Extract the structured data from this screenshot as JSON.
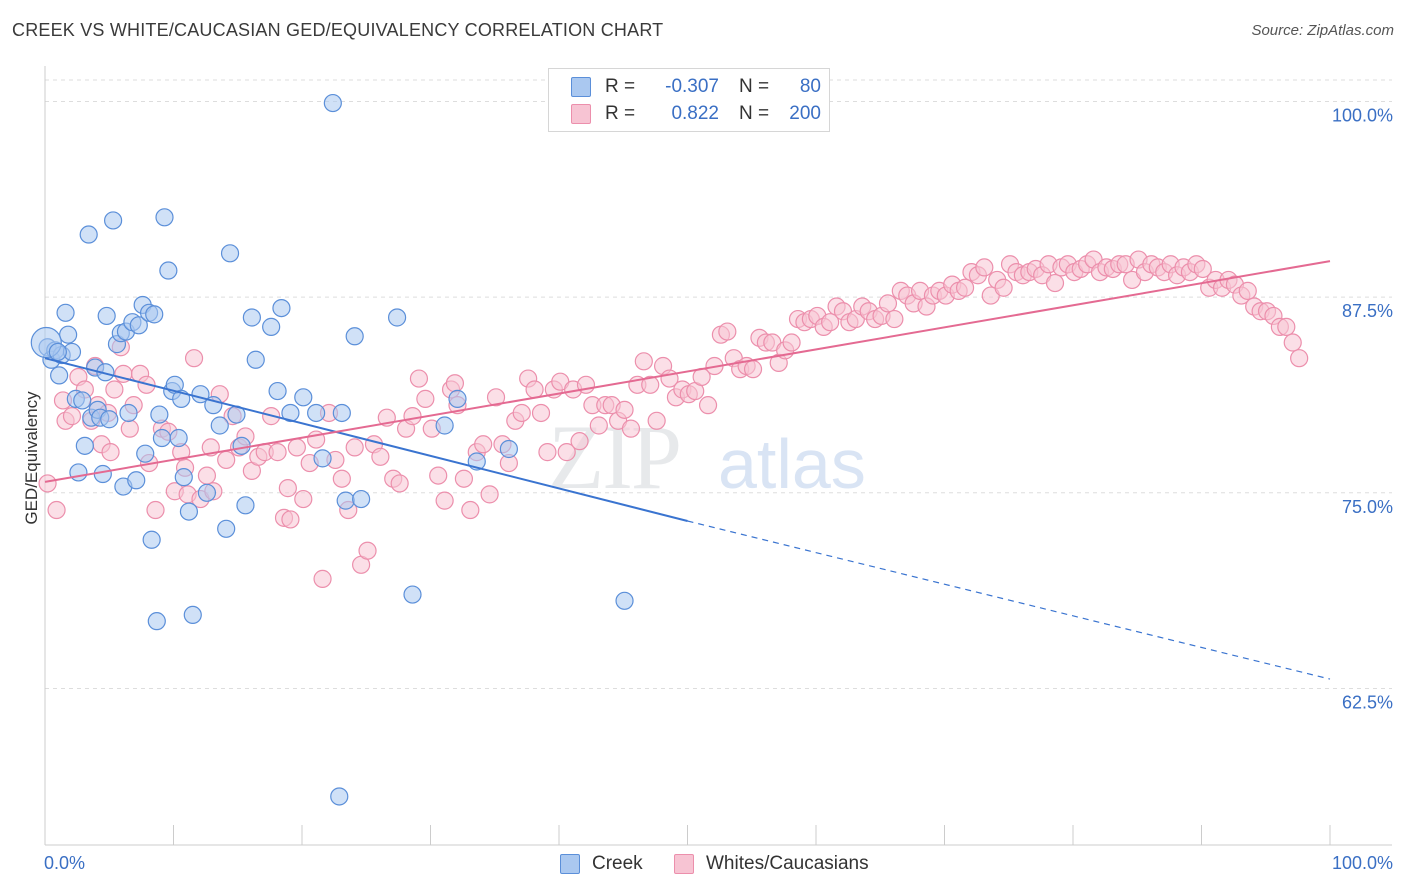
{
  "title": "CREEK VS WHITE/CAUCASIAN GED/EQUIVALENCY CORRELATION CHART",
  "source": "Source: ZipAtlas.com",
  "watermark": {
    "zip": "ZIP",
    "atlas": "atlas"
  },
  "legend": {
    "rows": [
      {
        "r_label": "R =",
        "r_value": "-0.307",
        "n_label": "N =",
        "n_value": "80"
      },
      {
        "r_label": "R =",
        "r_value": "0.822",
        "n_label": "N =",
        "n_value": "200"
      }
    ]
  },
  "colors": {
    "creek_fill": "#aac8f0",
    "creek_stroke": "#5b8fd9",
    "creek_line": "#3a74d0",
    "white_fill": "#f7c4d3",
    "white_stroke": "#ec8fac",
    "white_line": "#e46a92",
    "tick_label": "#3a6fc4",
    "grid": "#dddddd"
  },
  "chart_data": {
    "type": "scatter",
    "title": "CREEK VS WHITE/CAUCASIAN GED/EQUIVALENCY CORRELATION CHART",
    "xlabel": "",
    "ylabel": "GED/Equivalency",
    "xlim": [
      0,
      100
    ],
    "ylim": [
      52.5,
      101.5
    ],
    "x_tick_labels": [
      "0.0%",
      "100.0%"
    ],
    "y_ticks": [
      100.0,
      87.5,
      75.0,
      62.5
    ],
    "y_tick_labels": [
      "100.0%",
      "87.5%",
      "75.0%",
      "62.5%"
    ],
    "grid": true,
    "legend_position": "top-center",
    "series": [
      {
        "name": "Creek",
        "r": -0.307,
        "n": 80,
        "trend": {
          "x": [
            0,
            50
          ],
          "y": [
            83.6,
            73.2
          ],
          "dashed_to": [
            100,
            63.1
          ]
        },
        "points": [
          [
            0.2,
            84.3
          ],
          [
            0.5,
            83.5
          ],
          [
            0.8,
            84.1
          ],
          [
            1.1,
            82.5
          ],
          [
            1.3,
            83.8
          ],
          [
            1.6,
            86.5
          ],
          [
            1.8,
            85.1
          ],
          [
            2.1,
            84.0
          ],
          [
            2.4,
            81.0
          ],
          [
            2.6,
            76.3
          ],
          [
            3.1,
            78.0
          ],
          [
            3.4,
            91.5
          ],
          [
            3.6,
            79.8
          ],
          [
            3.9,
            83.0
          ],
          [
            4.1,
            80.3
          ],
          [
            4.3,
            79.8
          ],
          [
            4.5,
            76.2
          ],
          [
            4.7,
            82.7
          ],
          [
            4.8,
            86.3
          ],
          [
            5.3,
            92.4
          ],
          [
            5.6,
            84.5
          ],
          [
            5.9,
            85.2
          ],
          [
            6.1,
            75.4
          ],
          [
            6.3,
            85.3
          ],
          [
            6.5,
            80.1
          ],
          [
            6.8,
            85.9
          ],
          [
            7.1,
            75.8
          ],
          [
            7.3,
            85.7
          ],
          [
            7.6,
            87.0
          ],
          [
            7.8,
            77.5
          ],
          [
            8.1,
            86.5
          ],
          [
            8.3,
            72.0
          ],
          [
            8.5,
            86.4
          ],
          [
            8.7,
            66.8
          ],
          [
            8.9,
            80.0
          ],
          [
            9.1,
            78.5
          ],
          [
            9.3,
            92.6
          ],
          [
            9.6,
            89.2
          ],
          [
            9.9,
            81.5
          ],
          [
            10.1,
            81.9
          ],
          [
            10.4,
            78.5
          ],
          [
            10.6,
            81.0
          ],
          [
            10.8,
            76.0
          ],
          [
            11.2,
            73.8
          ],
          [
            11.5,
            67.2
          ],
          [
            12.1,
            81.3
          ],
          [
            12.6,
            75.0
          ],
          [
            13.1,
            80.6
          ],
          [
            13.6,
            79.3
          ],
          [
            14.1,
            72.7
          ],
          [
            14.4,
            90.3
          ],
          [
            14.9,
            80.0
          ],
          [
            15.3,
            78.0
          ],
          [
            15.6,
            74.2
          ],
          [
            16.1,
            86.2
          ],
          [
            16.4,
            83.5
          ],
          [
            17.6,
            85.6
          ],
          [
            18.1,
            81.5
          ],
          [
            18.4,
            86.8
          ],
          [
            19.1,
            80.1
          ],
          [
            20.1,
            81.1
          ],
          [
            21.1,
            80.1
          ],
          [
            21.6,
            77.2
          ],
          [
            22.4,
            99.9
          ],
          [
            22.9,
            55.6
          ],
          [
            23.1,
            80.1
          ],
          [
            23.4,
            74.5
          ],
          [
            24.1,
            85.0
          ],
          [
            24.6,
            74.6
          ],
          [
            27.4,
            86.2
          ],
          [
            28.6,
            68.5
          ],
          [
            31.1,
            79.3
          ],
          [
            32.1,
            81.0
          ],
          [
            33.6,
            77.0
          ],
          [
            36.1,
            77.8
          ],
          [
            45.1,
            68.1
          ],
          [
            0.1,
            84.6
          ],
          [
            1.0,
            84.0
          ],
          [
            2.9,
            80.9
          ],
          [
            5.0,
            79.7
          ]
        ]
      },
      {
        "name": "Whites/Caucasians",
        "r": 0.822,
        "n": 200,
        "trend": {
          "x": [
            0,
            100
          ],
          "y": [
            75.7,
            89.8
          ]
        },
        "points": [
          [
            0.2,
            75.6
          ],
          [
            0.9,
            73.9
          ],
          [
            1.4,
            80.9
          ],
          [
            1.6,
            79.6
          ],
          [
            2.1,
            79.9
          ],
          [
            2.6,
            82.4
          ],
          [
            3.1,
            81.6
          ],
          [
            3.6,
            79.6
          ],
          [
            3.9,
            83.1
          ],
          [
            4.1,
            80.6
          ],
          [
            4.4,
            78.1
          ],
          [
            4.9,
            80.1
          ],
          [
            5.1,
            77.6
          ],
          [
            5.4,
            81.6
          ],
          [
            5.9,
            84.3
          ],
          [
            6.1,
            82.6
          ],
          [
            6.6,
            79.1
          ],
          [
            6.9,
            80.6
          ],
          [
            7.4,
            82.6
          ],
          [
            7.9,
            81.9
          ],
          [
            8.1,
            76.9
          ],
          [
            8.6,
            73.9
          ],
          [
            9.1,
            79.1
          ],
          [
            9.6,
            78.9
          ],
          [
            10.1,
            75.1
          ],
          [
            10.6,
            77.6
          ],
          [
            10.9,
            76.6
          ],
          [
            11.1,
            74.9
          ],
          [
            11.6,
            83.6
          ],
          [
            12.1,
            74.6
          ],
          [
            12.6,
            76.1
          ],
          [
            12.9,
            77.9
          ],
          [
            13.1,
            75.1
          ],
          [
            13.6,
            81.3
          ],
          [
            14.1,
            77.1
          ],
          [
            14.6,
            79.9
          ],
          [
            15.1,
            77.9
          ],
          [
            15.6,
            78.6
          ],
          [
            16.1,
            76.4
          ],
          [
            16.6,
            77.3
          ],
          [
            17.1,
            77.6
          ],
          [
            17.6,
            79.9
          ],
          [
            18.1,
            77.6
          ],
          [
            18.6,
            73.4
          ],
          [
            18.9,
            75.3
          ],
          [
            19.1,
            73.3
          ],
          [
            19.6,
            77.9
          ],
          [
            20.1,
            74.6
          ],
          [
            20.6,
            76.9
          ],
          [
            21.1,
            78.4
          ],
          [
            21.6,
            69.5
          ],
          [
            22.1,
            80.1
          ],
          [
            22.6,
            77.1
          ],
          [
            23.1,
            75.9
          ],
          [
            23.6,
            73.9
          ],
          [
            24.1,
            77.9
          ],
          [
            24.6,
            70.4
          ],
          [
            25.1,
            71.3
          ],
          [
            25.6,
            78.1
          ],
          [
            26.1,
            77.3
          ],
          [
            26.6,
            79.8
          ],
          [
            27.1,
            75.9
          ],
          [
            27.6,
            75.6
          ],
          [
            28.1,
            79.1
          ],
          [
            28.6,
            79.9
          ],
          [
            29.1,
            82.3
          ],
          [
            29.6,
            81.0
          ],
          [
            30.1,
            79.1
          ],
          [
            30.6,
            76.1
          ],
          [
            31.1,
            74.5
          ],
          [
            31.6,
            81.6
          ],
          [
            31.9,
            82.0
          ],
          [
            32.1,
            80.6
          ],
          [
            32.6,
            75.9
          ],
          [
            33.1,
            73.9
          ],
          [
            33.6,
            77.6
          ],
          [
            34.1,
            78.1
          ],
          [
            34.6,
            74.9
          ],
          [
            35.1,
            81.1
          ],
          [
            35.6,
            78.1
          ],
          [
            36.1,
            76.9
          ],
          [
            36.6,
            79.6
          ],
          [
            37.1,
            80.1
          ],
          [
            37.6,
            82.3
          ],
          [
            38.1,
            81.6
          ],
          [
            38.6,
            80.1
          ],
          [
            39.1,
            77.6
          ],
          [
            39.6,
            81.6
          ],
          [
            40.1,
            82.1
          ],
          [
            40.6,
            77.6
          ],
          [
            41.1,
            81.6
          ],
          [
            41.6,
            78.3
          ],
          [
            42.1,
            81.9
          ],
          [
            42.6,
            80.6
          ],
          [
            43.1,
            79.3
          ],
          [
            43.6,
            80.6
          ],
          [
            44.1,
            80.6
          ],
          [
            44.6,
            79.6
          ],
          [
            45.1,
            80.3
          ],
          [
            45.6,
            79.1
          ],
          [
            46.1,
            81.9
          ],
          [
            46.6,
            83.4
          ],
          [
            47.1,
            81.9
          ],
          [
            47.6,
            79.6
          ],
          [
            48.1,
            83.1
          ],
          [
            48.6,
            82.3
          ],
          [
            49.1,
            81.1
          ],
          [
            49.6,
            81.6
          ],
          [
            50.1,
            81.3
          ],
          [
            50.6,
            81.5
          ],
          [
            51.1,
            82.4
          ],
          [
            51.6,
            80.6
          ],
          [
            52.1,
            83.1
          ],
          [
            52.6,
            85.1
          ],
          [
            53.1,
            85.3
          ],
          [
            53.6,
            83.6
          ],
          [
            54.1,
            82.9
          ],
          [
            54.6,
            83.1
          ],
          [
            55.1,
            82.9
          ],
          [
            55.6,
            84.9
          ],
          [
            56.1,
            84.6
          ],
          [
            56.6,
            84.6
          ],
          [
            57.1,
            83.3
          ],
          [
            57.6,
            84.1
          ],
          [
            58.1,
            84.6
          ],
          [
            58.6,
            86.1
          ],
          [
            59.1,
            85.9
          ],
          [
            59.6,
            86.1
          ],
          [
            60.1,
            86.3
          ],
          [
            60.6,
            85.6
          ],
          [
            61.1,
            85.9
          ],
          [
            61.6,
            86.9
          ],
          [
            62.1,
            86.6
          ],
          [
            62.6,
            85.9
          ],
          [
            63.1,
            86.1
          ],
          [
            63.6,
            86.9
          ],
          [
            64.1,
            86.6
          ],
          [
            64.6,
            86.1
          ],
          [
            65.1,
            86.3
          ],
          [
            65.6,
            87.1
          ],
          [
            66.1,
            86.1
          ],
          [
            66.6,
            87.9
          ],
          [
            67.1,
            87.6
          ],
          [
            67.6,
            87.1
          ],
          [
            68.1,
            87.9
          ],
          [
            68.6,
            86.9
          ],
          [
            69.1,
            87.6
          ],
          [
            69.6,
            87.9
          ],
          [
            70.1,
            87.6
          ],
          [
            70.6,
            88.3
          ],
          [
            71.1,
            87.9
          ],
          [
            71.6,
            88.1
          ],
          [
            72.1,
            89.1
          ],
          [
            72.6,
            88.9
          ],
          [
            73.1,
            89.4
          ],
          [
            73.6,
            87.6
          ],
          [
            74.1,
            88.6
          ],
          [
            74.6,
            88.1
          ],
          [
            75.1,
            89.6
          ],
          [
            75.6,
            89.1
          ],
          [
            76.1,
            88.9
          ],
          [
            76.6,
            89.1
          ],
          [
            77.1,
            89.3
          ],
          [
            77.6,
            88.9
          ],
          [
            78.1,
            89.6
          ],
          [
            78.6,
            88.4
          ],
          [
            79.1,
            89.4
          ],
          [
            79.6,
            89.6
          ],
          [
            80.1,
            89.1
          ],
          [
            80.6,
            89.3
          ],
          [
            81.1,
            89.6
          ],
          [
            81.6,
            89.9
          ],
          [
            82.1,
            89.1
          ],
          [
            82.6,
            89.4
          ],
          [
            83.1,
            89.3
          ],
          [
            83.6,
            89.6
          ],
          [
            84.1,
            89.6
          ],
          [
            84.6,
            88.6
          ],
          [
            85.1,
            89.9
          ],
          [
            85.6,
            89.1
          ],
          [
            86.1,
            89.6
          ],
          [
            86.6,
            89.4
          ],
          [
            87.1,
            89.1
          ],
          [
            87.6,
            89.6
          ],
          [
            88.1,
            88.9
          ],
          [
            88.6,
            89.4
          ],
          [
            89.1,
            89.1
          ],
          [
            89.6,
            89.6
          ],
          [
            90.1,
            89.3
          ],
          [
            90.6,
            88.1
          ],
          [
            91.1,
            88.6
          ],
          [
            91.6,
            88.1
          ],
          [
            92.1,
            88.6
          ],
          [
            92.6,
            88.3
          ],
          [
            93.1,
            87.6
          ],
          [
            93.6,
            87.9
          ],
          [
            94.1,
            86.9
          ],
          [
            94.6,
            86.6
          ],
          [
            95.1,
            86.6
          ],
          [
            95.6,
            86.3
          ],
          [
            96.1,
            85.6
          ],
          [
            96.6,
            85.6
          ],
          [
            97.1,
            84.6
          ],
          [
            97.6,
            83.6
          ]
        ]
      }
    ]
  },
  "bottom_legend": {
    "creek": "Creek",
    "white": "Whites/Caucasians"
  }
}
